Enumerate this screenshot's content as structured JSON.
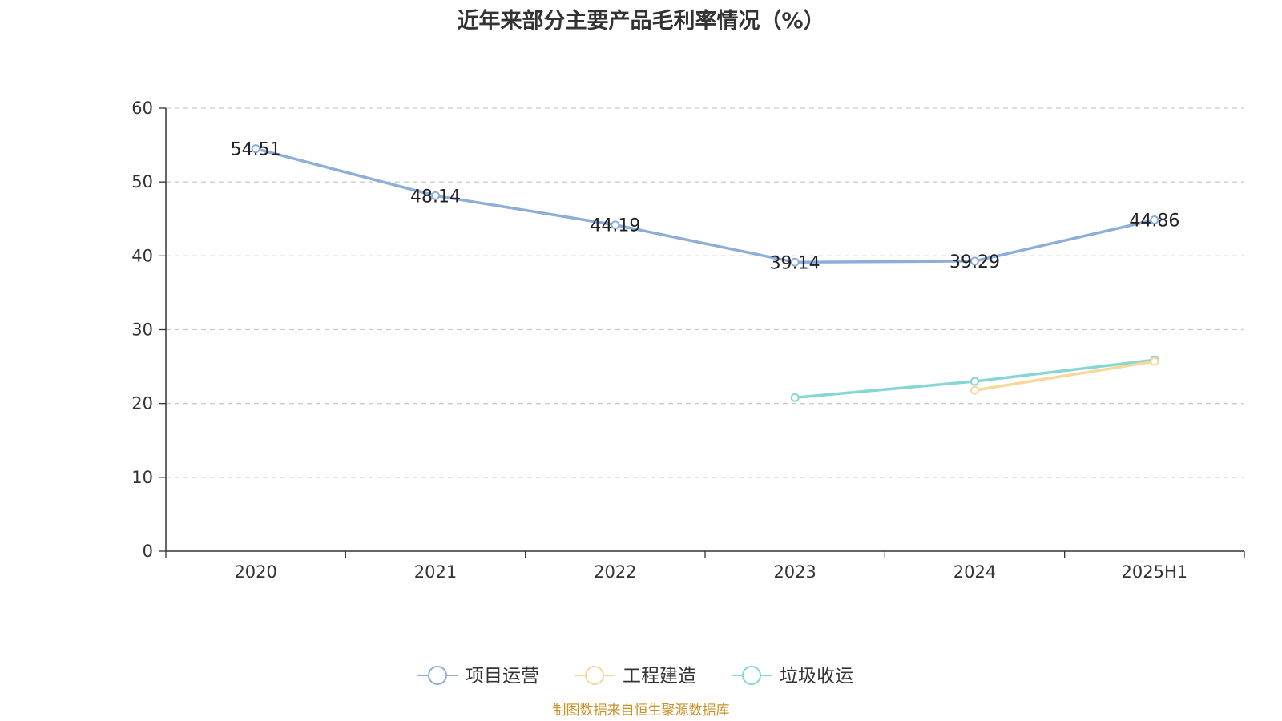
{
  "chart_data": {
    "type": "line",
    "title": "近年来部分主要产品毛利率情况（%）",
    "categories": [
      "2020",
      "2021",
      "2022",
      "2023",
      "2024",
      "2025H1"
    ],
    "ylim": [
      0,
      60
    ],
    "yticks": [
      0,
      10,
      20,
      30,
      40,
      50,
      60
    ],
    "grid": true,
    "legend_position": "bottom",
    "series": [
      {
        "name": "项目运营",
        "color": "#8eaed9",
        "values": [
          54.51,
          48.14,
          44.19,
          39.14,
          39.29,
          44.86
        ],
        "show_labels": true
      },
      {
        "name": "工程建造",
        "color": "#f7d89a",
        "values": [
          null,
          null,
          null,
          null,
          21.8,
          25.7
        ],
        "show_labels": false
      },
      {
        "name": "垃圾收运",
        "color": "#86d6d4",
        "values": [
          null,
          null,
          null,
          20.8,
          23.0,
          25.9
        ],
        "show_labels": false
      }
    ]
  },
  "footer": {
    "source": "制图数据来自恒生聚源数据库"
  }
}
